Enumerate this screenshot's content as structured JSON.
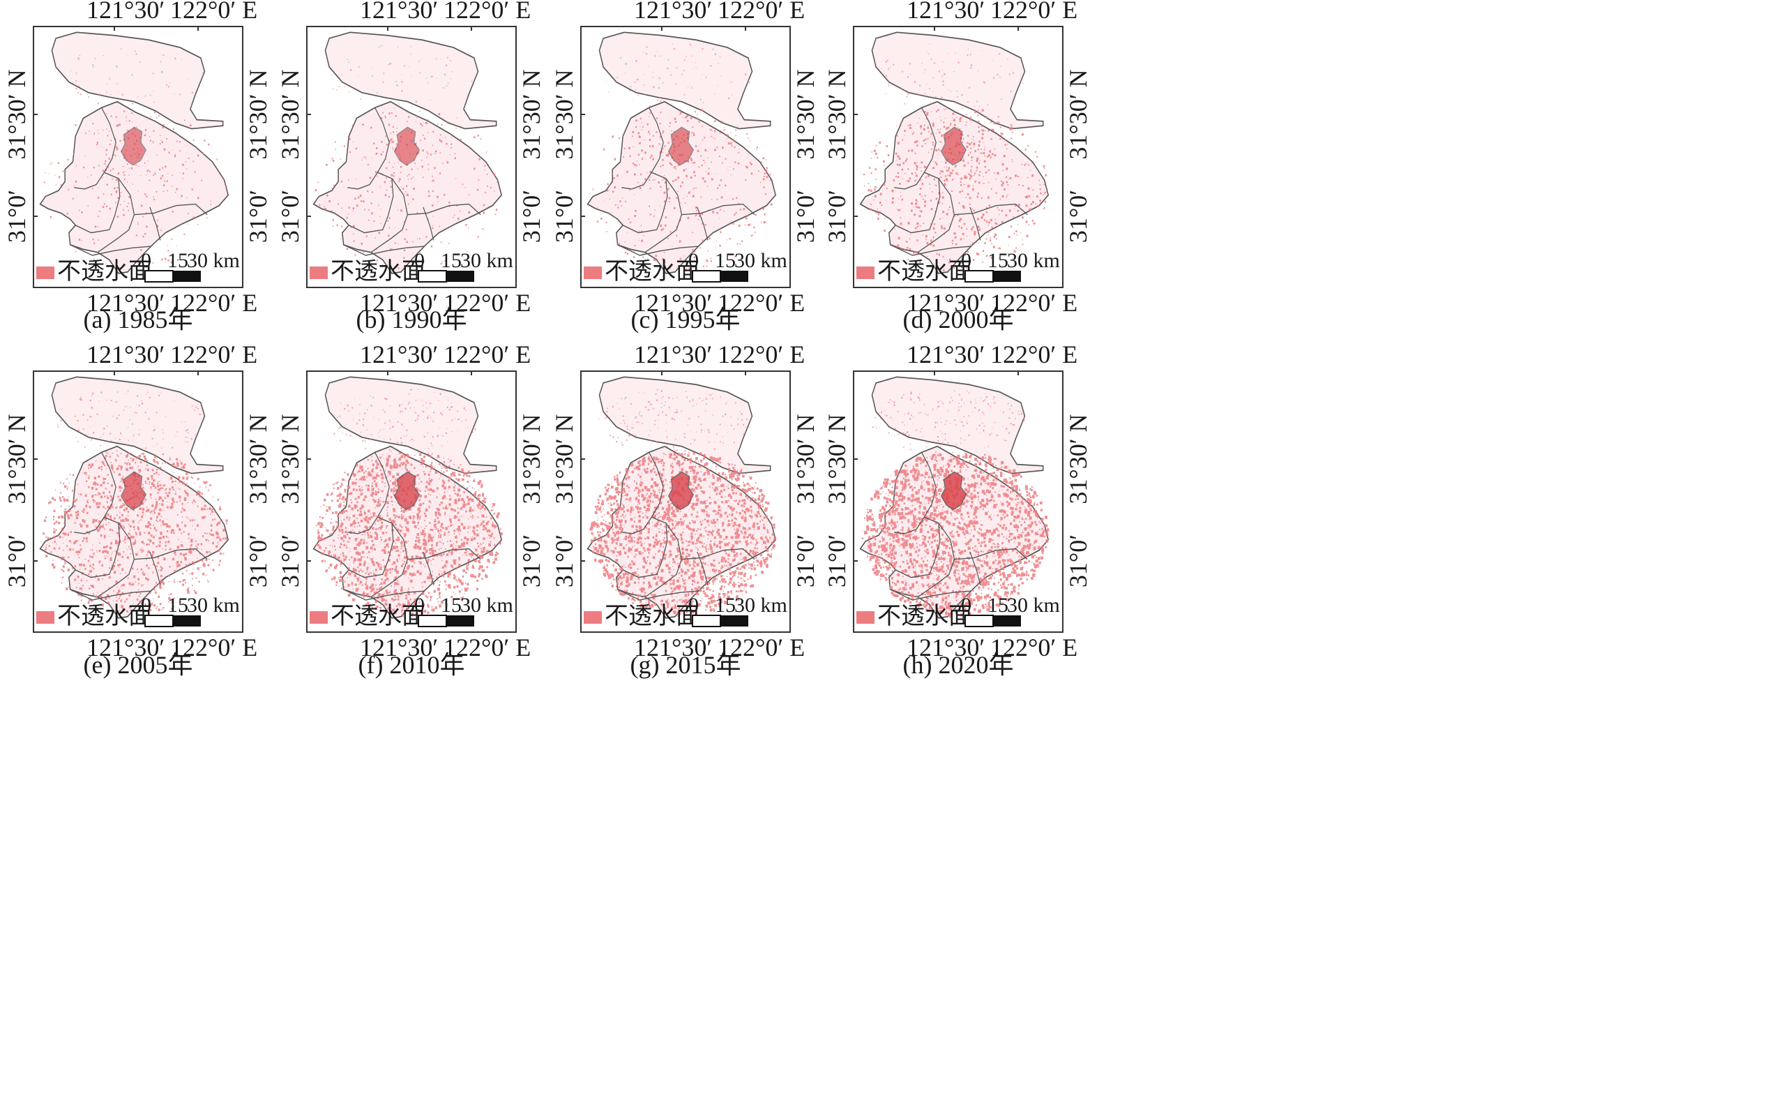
{
  "figure": {
    "legend_label": "不透水面",
    "scale_ticks": [
      "0",
      "15",
      "30 km"
    ],
    "lon_ticks": [
      "121°30′",
      "122°0′ E"
    ],
    "lat_ticks": [
      "31°30′ N",
      "31°0′"
    ],
    "colors": {
      "impervious": "#ec7c80",
      "impervious_dark": "#d9474f",
      "boundary": "#555555",
      "frame": "#333333"
    },
    "panels": [
      {
        "caption": "(a) 1985年",
        "density": 0.18
      },
      {
        "caption": "(b) 1990年",
        "density": 0.22
      },
      {
        "caption": "(c) 1995年",
        "density": 0.28
      },
      {
        "caption": "(d) 2000年",
        "density": 0.38
      },
      {
        "caption": "(e) 2005年",
        "density": 0.55
      },
      {
        "caption": "(f) 2010年",
        "density": 0.7
      },
      {
        "caption": "(g) 2015年",
        "density": 0.78
      },
      {
        "caption": "(h) 2020年",
        "density": 0.86
      }
    ]
  }
}
